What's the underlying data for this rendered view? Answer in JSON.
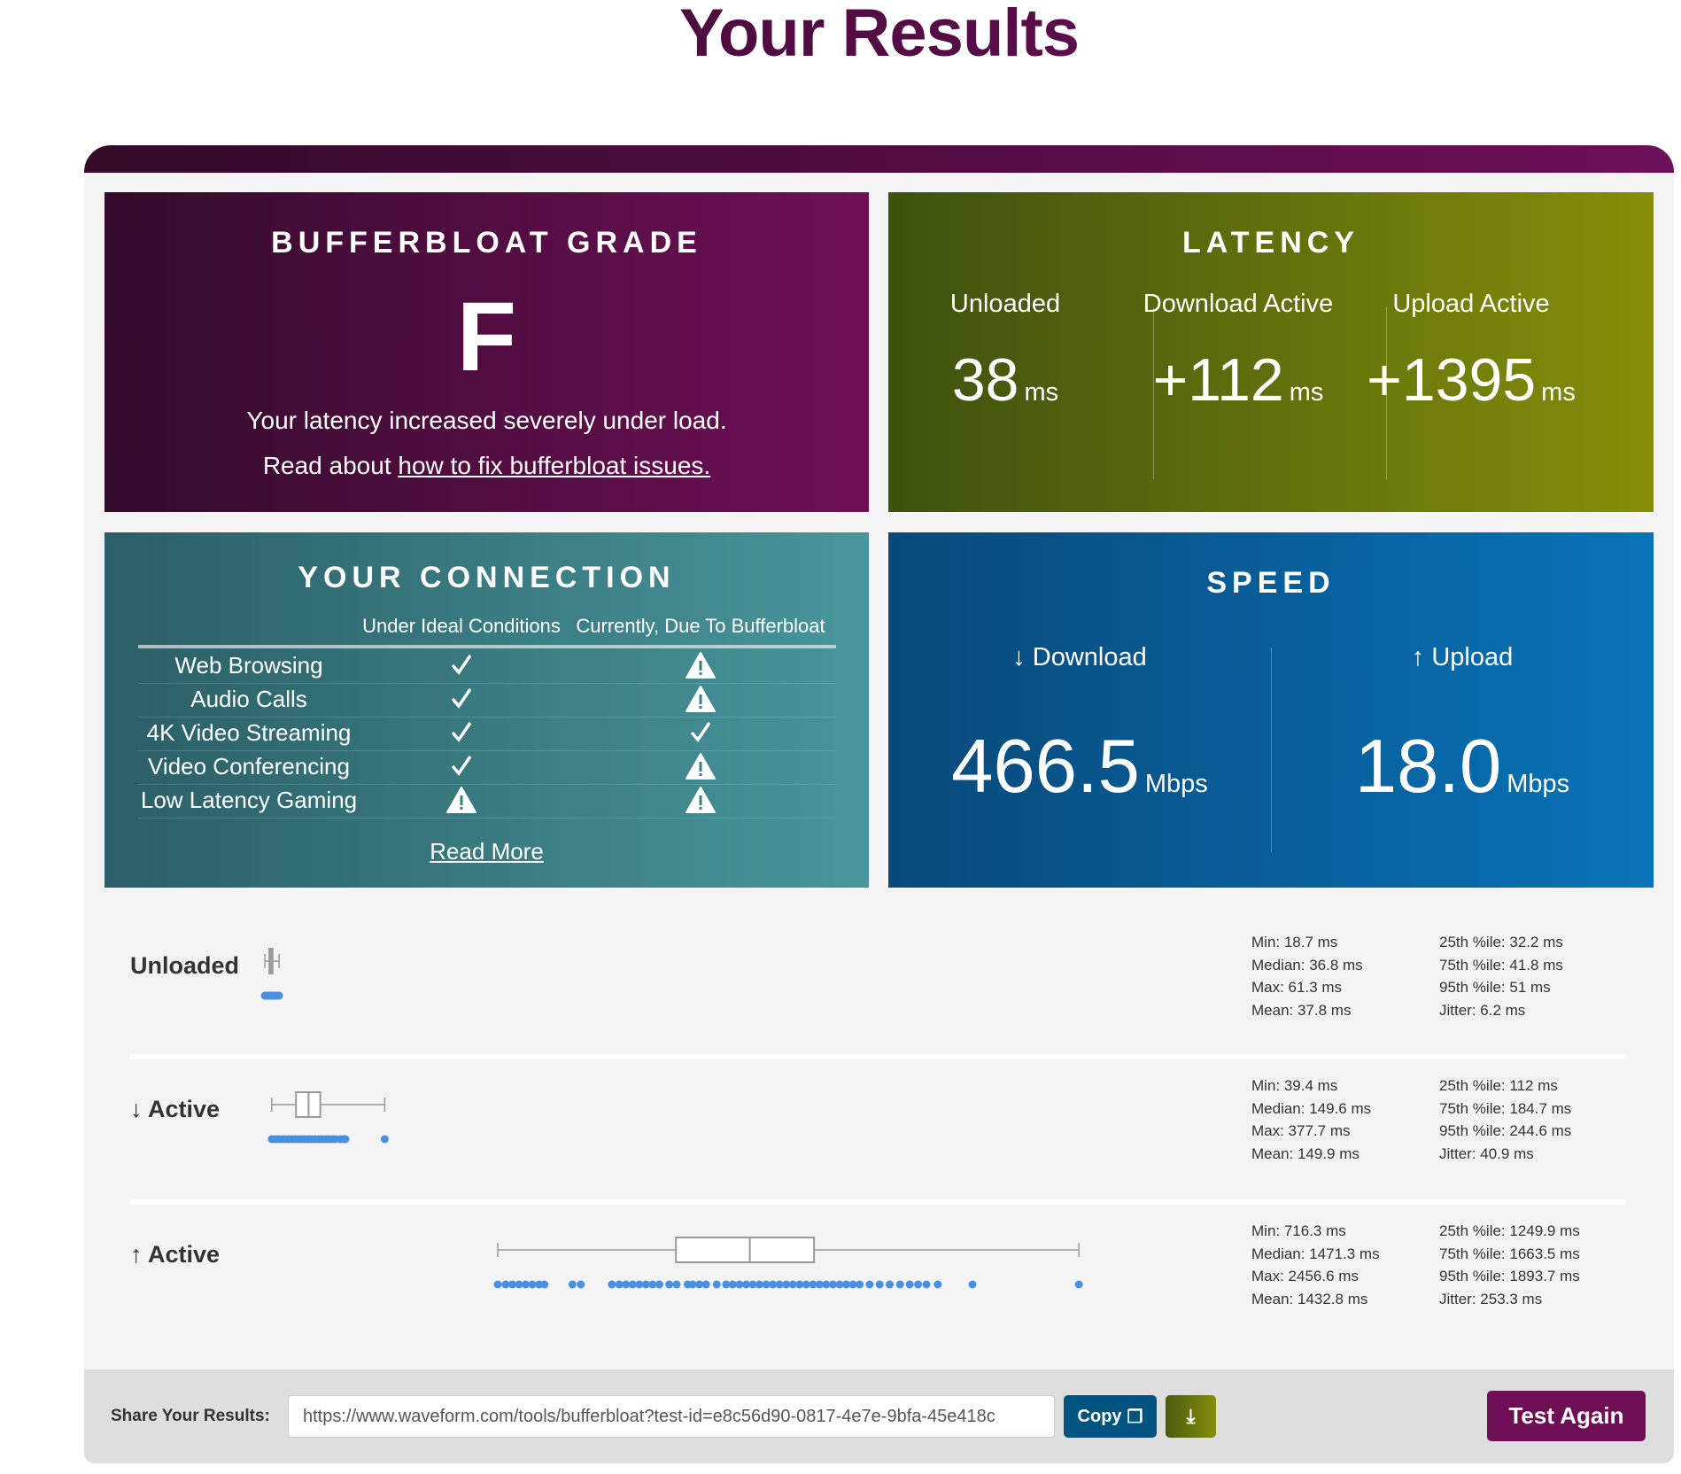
{
  "page_title": "Your Results",
  "grade": {
    "title": "BUFFERBLOAT GRADE",
    "letter": "F",
    "line1": "Your latency increased severely under load.",
    "line2_prefix": "Read about ",
    "line2_link": "how to fix bufferbloat issues."
  },
  "latency": {
    "title": "LATENCY",
    "columns": [
      {
        "label": "Unloaded",
        "value": "38",
        "unit": "ms"
      },
      {
        "label": "Download Active",
        "value": "+112",
        "unit": "ms"
      },
      {
        "label": "Upload Active",
        "value": "+1395",
        "unit": "ms"
      }
    ]
  },
  "connection": {
    "title": "YOUR CONNECTION",
    "headers": [
      "Under Ideal Conditions",
      "Currently, Due To Bufferbloat"
    ],
    "rows": [
      {
        "name": "Web Browsing",
        "ideal": "check",
        "current": "warning"
      },
      {
        "name": "Audio Calls",
        "ideal": "check",
        "current": "warning"
      },
      {
        "name": "4K Video Streaming",
        "ideal": "check",
        "current": "check"
      },
      {
        "name": "Video Conferencing",
        "ideal": "check",
        "current": "warning"
      },
      {
        "name": "Low Latency Gaming",
        "ideal": "warning",
        "current": "warning"
      }
    ],
    "read_more": "Read More"
  },
  "speed": {
    "title": "SPEED",
    "download": {
      "label": "↓ Download",
      "value": "466.5",
      "unit": "Mbps"
    },
    "upload": {
      "label": "↑ Upload",
      "value": "18.0",
      "unit": "Mbps"
    }
  },
  "stats": [
    {
      "label": "Unloaded",
      "min": 18.7,
      "q1": 32.2,
      "median": 36.8,
      "q3": 41.8,
      "max": 61.3,
      "lines1": [
        "Min: 18.7 ms",
        "Median: 36.8 ms",
        "Max: 61.3 ms",
        "Mean: 37.8 ms"
      ],
      "lines2": [
        "25th %ile: 32.2 ms",
        "75th %ile: 41.8 ms",
        "95th %ile: 51 ms",
        "Jitter: 6.2 ms"
      ],
      "samples": [
        18.7,
        22,
        25,
        28,
        30,
        32,
        33,
        35,
        36,
        37,
        38,
        40,
        42,
        45,
        48,
        51,
        55,
        61.3
      ]
    },
    {
      "label": "↓ Active",
      "min": 39.4,
      "q1": 112,
      "median": 149.6,
      "q3": 184.7,
      "max": 377.7,
      "lines1": [
        "Min: 39.4 ms",
        "Median: 149.6 ms",
        "Max: 377.7 ms",
        "Mean: 149.9 ms"
      ],
      "lines2": [
        "25th %ile: 112 ms",
        "75th %ile: 184.7 ms",
        "95th %ile: 244.6 ms",
        "Jitter: 40.9 ms"
      ],
      "samples": [
        39.4,
        50,
        60,
        70,
        80,
        90,
        100,
        110,
        120,
        130,
        140,
        150,
        160,
        170,
        180,
        190,
        200,
        210,
        220,
        230,
        245,
        255,
        260,
        377.7
      ]
    },
    {
      "label": "↑ Active",
      "min": 716.3,
      "q1": 1249.9,
      "median": 1471.3,
      "q3": 1663.5,
      "max": 2456.6,
      "lines1": [
        "Min: 716.3 ms",
        "Median: 1471.3 ms",
        "Max: 2456.6 ms",
        "Mean: 1432.8 ms"
      ],
      "lines2": [
        "25th %ile: 1249.9 ms",
        "75th %ile: 1663.5 ms",
        "95th %ile: 1893.7 ms",
        "Jitter: 253.3 ms"
      ],
      "samples": [
        716.3,
        740,
        760,
        780,
        800,
        820,
        840,
        856,
        940,
        965,
        1058,
        1080,
        1100,
        1120,
        1140,
        1160,
        1180,
        1200,
        1230,
        1252,
        1285,
        1300,
        1320,
        1340,
        1372,
        1400,
        1420,
        1440,
        1460,
        1480,
        1500,
        1520,
        1540,
        1560,
        1580,
        1600,
        1620,
        1640,
        1660,
        1680,
        1700,
        1720,
        1740,
        1760,
        1780,
        1800,
        1830,
        1860,
        1890,
        1921,
        1950,
        1975,
        2000,
        2034,
        2138,
        2456.6
      ]
    }
  ],
  "footer": {
    "share_label": "Share Your Results:",
    "share_url": "https://www.waveform.com/tools/bufferbloat?test-id=e8c56d90-0817-4e7e-9bfa-45e418c",
    "copy_label": "Copy",
    "test_again": "Test Again"
  },
  "colors": {
    "dot": "#4a8fe0",
    "grade": "#6e0f5a",
    "latency": "#868e09",
    "connection": "#48969c",
    "speed": "#0873b8",
    "copy": "#00547f",
    "test_again": "#6e0f55"
  }
}
